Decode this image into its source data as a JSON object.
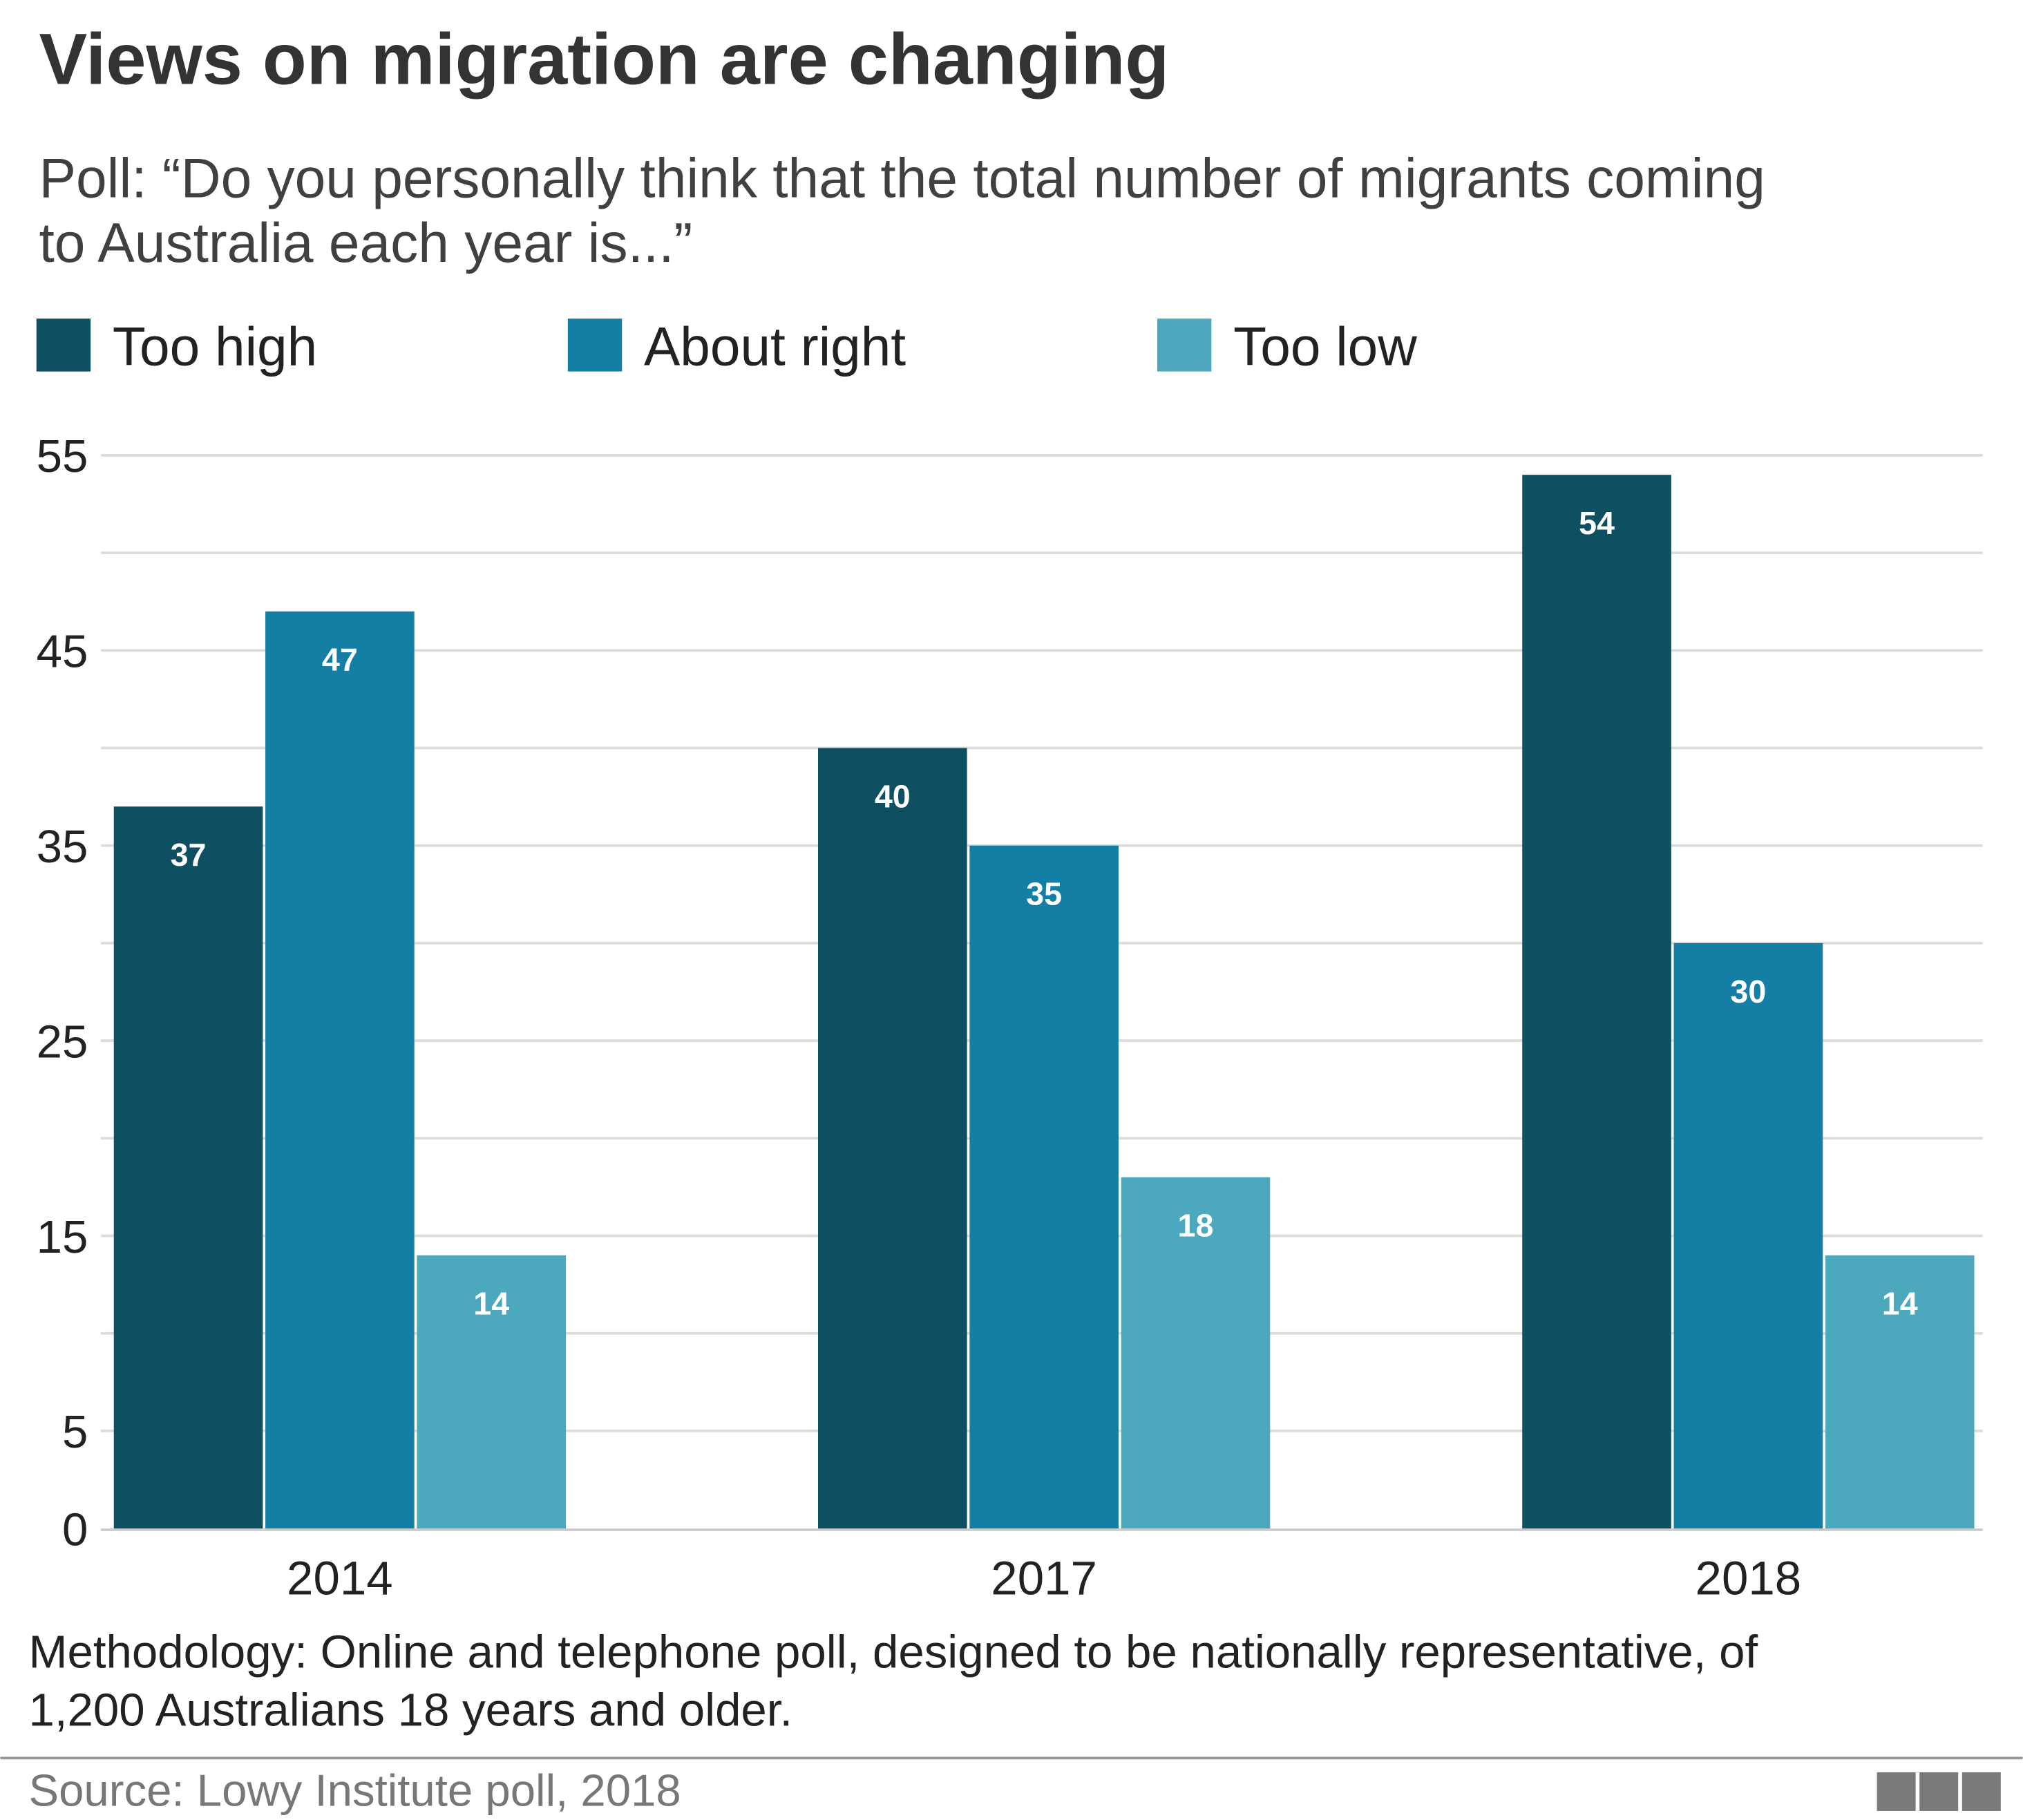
{
  "title": "Views on migration are changing",
  "subtitle_lines": [
    "Poll: “Do you personally think that the total number of migrants coming",
    "to Australia each year is...”"
  ],
  "chart_data": {
    "type": "bar",
    "title": "Views on migration are changing",
    "categories": [
      "2014",
      "2017",
      "2018"
    ],
    "series": [
      {
        "name": "Too high",
        "values": [
          37,
          40,
          54
        ],
        "color": "#0e4f61"
      },
      {
        "name": "About right",
        "values": [
          47,
          35,
          30
        ],
        "color": "#137fa4"
      },
      {
        "name": "Too low",
        "values": [
          14,
          18,
          14
        ],
        "color": "#4ba8bd"
      }
    ],
    "yticks": [
      0,
      5,
      15,
      25,
      35,
      45,
      55
    ],
    "ylim": [
      0,
      55
    ],
    "grid": true,
    "gridline_step": 5,
    "legend": "top-left",
    "data_labels": true,
    "xlabel": "",
    "ylabel": ""
  },
  "footer": {
    "methodology_lines": [
      "Methodology: Online and telephone poll, designed to be nationally representative, of",
      "1,200 Australians 18 years and older."
    ],
    "source": "Source: Lowy Institute poll, 2018",
    "logo": "BBC"
  }
}
